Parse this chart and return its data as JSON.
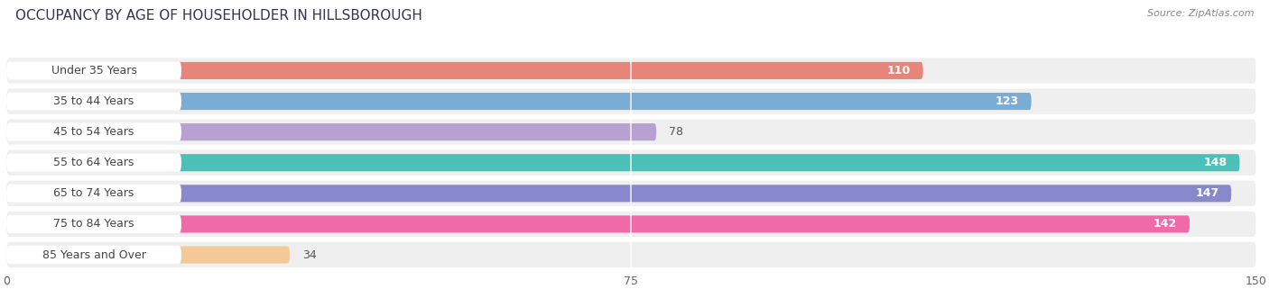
{
  "title": "OCCUPANCY BY AGE OF HOUSEHOLDER IN HILLSBOROUGH",
  "source": "Source: ZipAtlas.com",
  "categories": [
    "Under 35 Years",
    "35 to 44 Years",
    "45 to 54 Years",
    "55 to 64 Years",
    "65 to 74 Years",
    "75 to 84 Years",
    "85 Years and Over"
  ],
  "values": [
    110,
    123,
    78,
    148,
    147,
    142,
    34
  ],
  "bar_colors": [
    "#e8857a",
    "#7badd4",
    "#b8a0d0",
    "#4bbfb8",
    "#8888cc",
    "#f06aaa",
    "#f5c898"
  ],
  "xlim": [
    0,
    150
  ],
  "xticks": [
    0,
    75,
    150
  ],
  "title_fontsize": 11,
  "label_fontsize": 9,
  "value_fontsize": 9,
  "row_bg_color": "#efefef",
  "bar_bg_color": "#e0e0e0",
  "value_inside_threshold": 100
}
